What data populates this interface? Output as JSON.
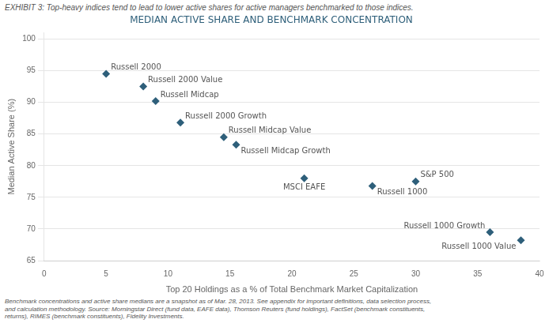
{
  "chart_data": {
    "type": "scatter",
    "title": "MEDIAN ACTIVE SHARE AND BENCHMARK CONCENTRATION",
    "subtitle": "EXHIBIT 3: Top-heavy indices tend to lead to lower active shares for active managers benchmarked to those indices.",
    "xlabel": "Top 20 Holdings as a % of Total Benchmark Market Capitalization",
    "ylabel": "Median Active Share (%)",
    "footnote": "Benchmark concentrations and active share medians are a snapshot as of Mar. 28, 2013. See appendix for important definitions, data selection process,\nand calculation methodology. Source: Morningstar Direct (fund data, EAFE data), Thomson Reuters (fund holdings), FactSet (benchmark constituents,\nreturns), RIMES (benchmark constituents), Fidelity Investments.",
    "x": [
      5.0,
      8.0,
      9.0,
      11.0,
      14.5,
      15.5,
      21.0,
      26.5,
      30.0,
      36.0,
      38.5
    ],
    "values": [
      94.5,
      92.5,
      90.2,
      86.8,
      84.5,
      83.3,
      78.0,
      76.8,
      77.5,
      69.5,
      68.2
    ],
    "labels": [
      "Russell 2000",
      "Russell 2000 Value",
      "Russell Midcap",
      "Russell 2000 Growth",
      "Russell Midcap Value",
      "Russell Midcap Growth",
      "MSCI EAFE",
      "Russell 1000",
      "S&P 500",
      "Russell 1000 Growth",
      "Russell 1000 Value"
    ],
    "color": "#2e5f7a",
    "marker": "diamond",
    "xlim": [
      0,
      40
    ],
    "ylim": [
      65,
      101
    ],
    "xticks": [
      0,
      5,
      10,
      15,
      20,
      25,
      30,
      35,
      40
    ],
    "yticks": [
      65,
      70,
      75,
      80,
      85,
      90,
      95,
      100
    ],
    "grid": "y"
  }
}
